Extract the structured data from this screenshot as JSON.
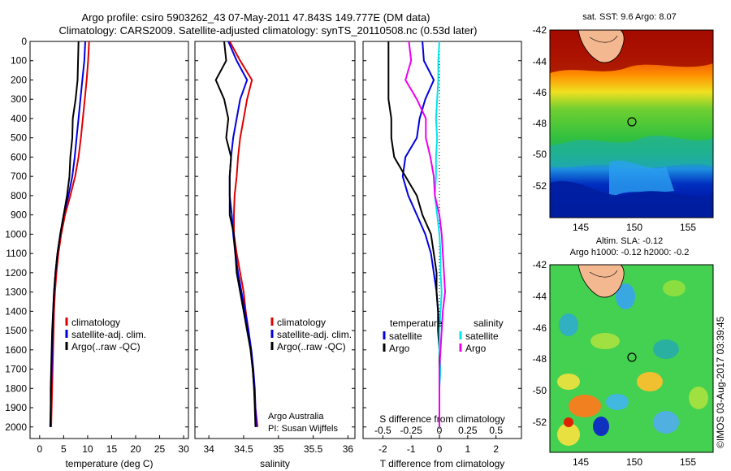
{
  "header": {
    "line1": "Argo profile: csiro 5903262_43 07-May-2011 47.843S 149.777E (DM data)",
    "line2": "Climatology: CARS2009. Satellite-adjusted climatology: synTS_20110508.nc (0.53d later)"
  },
  "colors": {
    "climatology": "#e00000",
    "satellite": "#0000e0",
    "argo": "#000000",
    "sal_satellite": "#00e5ee",
    "sal_argo": "#ee00ee"
  },
  "footer": {
    "credit": "Argo Australia",
    "pi": "PI: Susan Wijffels"
  },
  "watermark": "©IMOS 03-Aug-2017 03:39:45",
  "maps": {
    "sst_title": "sat. SST: 9.6 Argo: 8.07",
    "sla_title1": "Altim. SLA: -0.12",
    "sla_title2": "Argo h1000: -0.12 h2000: -0.2",
    "yticks": [
      "-42",
      "-44",
      "-46",
      "-48",
      "-50",
      "-52"
    ],
    "xticks": [
      "145",
      "150",
      "155"
    ]
  },
  "chart_data": [
    {
      "type": "line",
      "xlabel": "temperature (deg C)",
      "xticks": [
        0,
        5,
        10,
        15,
        20,
        25,
        30
      ],
      "yticks": [
        0,
        100,
        200,
        300,
        400,
        500,
        600,
        700,
        800,
        900,
        1000,
        1100,
        1200,
        1300,
        1400,
        1500,
        1600,
        1700,
        1800,
        1900,
        2000
      ],
      "xlim": [
        -2,
        31
      ],
      "ylim": [
        2060,
        0
      ],
      "legend": [
        "climatology",
        "satellite-adj. clim.",
        "Argo(..raw -QC)"
      ],
      "series": [
        {
          "name": "climatology",
          "color": "#e00000",
          "x": [
            10.3,
            10.1,
            9.8,
            9.4,
            9.0,
            8.6,
            8.1,
            7.4,
            6.4,
            5.3,
            4.5,
            3.9,
            3.5,
            3.2,
            3.0,
            2.9,
            2.8,
            2.7,
            2.6,
            2.5,
            2.4
          ],
          "y": [
            0,
            100,
            200,
            300,
            400,
            500,
            600,
            700,
            800,
            900,
            1000,
            1100,
            1200,
            1300,
            1400,
            1500,
            1600,
            1700,
            1800,
            1900,
            2000
          ]
        },
        {
          "name": "satellite-adj. clim.",
          "color": "#0000e0",
          "x": [
            9.5,
            9.3,
            8.9,
            8.5,
            8.1,
            7.7,
            7.3,
            6.8,
            6.0,
            5.0,
            4.3,
            3.7,
            3.3,
            3.0,
            2.8,
            2.7,
            2.6,
            2.5,
            2.4,
            2.3,
            2.3
          ],
          "y": [
            0,
            100,
            200,
            300,
            400,
            500,
            600,
            700,
            800,
            900,
            1000,
            1100,
            1200,
            1300,
            1400,
            1500,
            1600,
            1700,
            1800,
            1900,
            2000
          ]
        },
        {
          "name": "Argo(..raw -QC)",
          "color": "#000000",
          "x": [
            8.1,
            8.0,
            7.9,
            7.5,
            6.9,
            6.8,
            6.4,
            6.2,
            5.7,
            5.0,
            4.3,
            3.7,
            3.3,
            3.0,
            2.8,
            2.6,
            2.5,
            2.4,
            2.3,
            2.3,
            2.2
          ],
          "y": [
            0,
            100,
            200,
            300,
            400,
            500,
            600,
            700,
            800,
            900,
            1000,
            1100,
            1200,
            1300,
            1400,
            1500,
            1600,
            1700,
            1800,
            1900,
            2000
          ]
        }
      ]
    },
    {
      "type": "line",
      "xlabel": "salinity",
      "xticks": [
        34,
        34.5,
        35,
        35.5,
        36
      ],
      "xtick_labels": [
        "34",
        "34.5",
        "35",
        "35.5",
        "36"
      ],
      "yticks": [
        0,
        100,
        200,
        300,
        400,
        500,
        600,
        700,
        800,
        900,
        1000,
        1100,
        1200,
        1300,
        1400,
        1500,
        1600,
        1700,
        1800,
        1900,
        2000
      ],
      "xlim": [
        33.8,
        36.1
      ],
      "ylim": [
        2060,
        0
      ],
      "legend": [
        "climatology",
        "satellite-adj. clim.",
        "Argo(..raw -QC)"
      ],
      "series": [
        {
          "name": "climatology",
          "color": "#e00000",
          "x": [
            34.3,
            34.45,
            34.62,
            34.55,
            34.5,
            34.45,
            34.42,
            34.4,
            34.37,
            34.36,
            34.36,
            34.4,
            34.45,
            34.5,
            34.53,
            34.57,
            34.6,
            34.63,
            34.65,
            34.67,
            34.7
          ],
          "y": [
            0,
            100,
            200,
            300,
            400,
            500,
            600,
            700,
            800,
            900,
            1000,
            1100,
            1200,
            1300,
            1400,
            1500,
            1600,
            1700,
            1800,
            1900,
            2000
          ]
        },
        {
          "name": "satellite-adj. clim.",
          "color": "#0000e0",
          "x": [
            34.28,
            34.4,
            34.55,
            34.45,
            34.4,
            34.35,
            34.32,
            34.3,
            34.3,
            34.33,
            34.35,
            34.38,
            34.42,
            34.47,
            34.52,
            34.57,
            34.61,
            34.64,
            34.66,
            34.67,
            34.68
          ],
          "y": [
            0,
            100,
            200,
            300,
            400,
            500,
            600,
            700,
            800,
            900,
            1000,
            1100,
            1200,
            1300,
            1400,
            1500,
            1600,
            1700,
            1800,
            1900,
            2000
          ]
        },
        {
          "name": "Argo(..raw -QC)",
          "color": "#000000",
          "x": [
            34.22,
            34.25,
            34.1,
            34.22,
            34.28,
            34.25,
            34.32,
            34.3,
            34.3,
            34.3,
            34.36,
            34.38,
            34.4,
            34.45,
            34.5,
            34.55,
            34.6,
            34.63,
            34.65,
            34.66,
            34.67
          ],
          "y": [
            0,
            100,
            200,
            300,
            400,
            500,
            600,
            700,
            800,
            900,
            1000,
            1100,
            1200,
            1300,
            1400,
            1500,
            1600,
            1700,
            1800,
            1900,
            2000
          ]
        }
      ]
    },
    {
      "type": "line",
      "xlabel": "T difference from climatology",
      "xlabel_top": "S difference from climatology",
      "xticks": [
        -2,
        -1,
        0,
        1,
        2
      ],
      "xticks_top": [
        "-0.5",
        "-0.25",
        "0",
        "0.25",
        "0.5"
      ],
      "yticks": [
        0,
        100,
        200,
        300,
        400,
        500,
        600,
        700,
        800,
        900,
        1000,
        1100,
        1200,
        1300,
        1400,
        1500,
        1600,
        1700,
        1800,
        1900,
        2000
      ],
      "xlim": [
        -2.7,
        2.9
      ],
      "ylim": [
        2060,
        0
      ],
      "legend_headers": [
        "temperature",
        "salinity"
      ],
      "legend": [
        "satellite",
        "Argo",
        "satellite",
        "Argo"
      ],
      "series": [
        {
          "name": "satellite",
          "group": "temperature",
          "color": "#0000e0",
          "x": [
            -0.6,
            -0.55,
            -0.2,
            -0.5,
            -0.7,
            -0.8,
            -1.2,
            -1.3,
            -1.1,
            -0.8,
            -0.5,
            -0.3,
            -0.2,
            -0.1,
            -0.05,
            0,
            0,
            0,
            0,
            0,
            0
          ],
          "y": [
            0,
            100,
            200,
            300,
            400,
            500,
            600,
            700,
            800,
            900,
            1000,
            1100,
            1200,
            1300,
            1400,
            1500,
            1600,
            1700,
            1800,
            1900,
            2000
          ]
        },
        {
          "name": "Argo",
          "group": "temperature",
          "color": "#000000",
          "x": [
            -1.8,
            -1.8,
            -1.8,
            -1.8,
            -1.7,
            -1.7,
            -1.6,
            -1.2,
            -0.8,
            -0.6,
            -0.3,
            -0.2,
            -0.1,
            -0.1,
            -0.05,
            -0.05,
            0,
            0,
            0,
            0,
            0
          ],
          "y": [
            0,
            100,
            200,
            300,
            400,
            500,
            600,
            700,
            800,
            900,
            1000,
            1100,
            1200,
            1300,
            1400,
            1500,
            1600,
            1700,
            1800,
            1900,
            2000
          ]
        },
        {
          "name": "satellite",
          "group": "salinity",
          "color": "#00e5ee",
          "x": [
            0.0,
            -0.01,
            -0.01,
            -0.02,
            -0.03,
            -0.02,
            -0.03,
            -0.03,
            -0.04,
            -0.02,
            0.0,
            0.01,
            0.01,
            0.02,
            0.01,
            0.0,
            0.0,
            0.01,
            0.0,
            0.0,
            0.0
          ],
          "y": [
            0,
            100,
            200,
            300,
            400,
            500,
            600,
            700,
            800,
            900,
            1000,
            1100,
            1200,
            1300,
            1400,
            1500,
            1600,
            1700,
            1800,
            1900,
            2000
          ]
        },
        {
          "name": "Argo",
          "group": "salinity",
          "color": "#ee00ee",
          "x": [
            -0.27,
            -0.25,
            -0.3,
            -0.2,
            -0.12,
            -0.12,
            -0.08,
            -0.05,
            -0.04,
            0.0,
            0.02,
            0.03,
            0.04,
            0.05,
            0.03,
            0.02,
            0.01,
            0.0,
            0.0,
            0.0,
            0.0
          ],
          "y": [
            0,
            100,
            200,
            300,
            400,
            500,
            600,
            700,
            800,
            900,
            1000,
            1100,
            1200,
            1300,
            1400,
            1500,
            1600,
            1700,
            1800,
            1900,
            2000
          ]
        }
      ]
    }
  ]
}
